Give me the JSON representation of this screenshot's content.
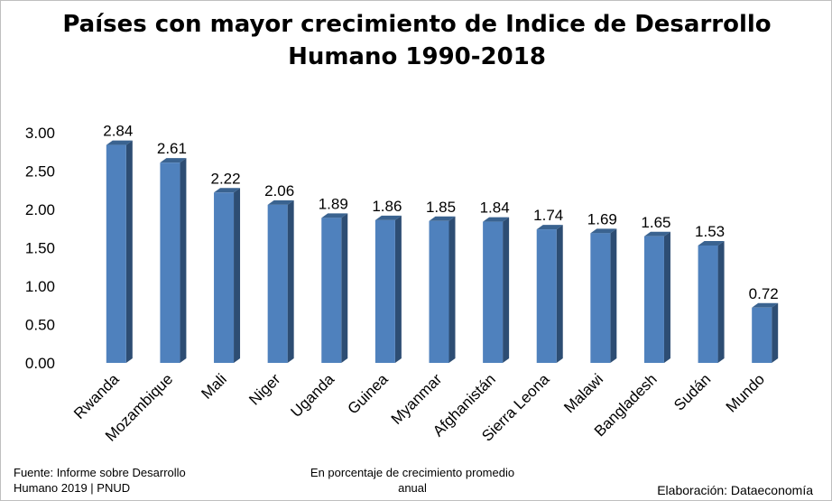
{
  "chart_data": {
    "type": "bar",
    "title": [
      "Países con mayor crecimiento de Indice de Desarrollo",
      "Humano 1990-2018"
    ],
    "categories": [
      "Rwanda",
      "Mozambique",
      "Mali",
      "Niger",
      "Uganda",
      "Guinea",
      "Myanmar",
      "Afghanistán",
      "Sierra Leona",
      "Malawi",
      "Bangladesh",
      "Sudán",
      "Mundo"
    ],
    "values": [
      2.84,
      2.61,
      2.22,
      2.06,
      1.89,
      1.86,
      1.85,
      1.84,
      1.74,
      1.69,
      1.65,
      1.53,
      0.72
    ],
    "value_labels": [
      "2.84",
      "2.61",
      "2.22",
      "2.06",
      "1.89",
      "1.86",
      "1.85",
      "1.84",
      "1.74",
      "1.69",
      "1.65",
      "1.53",
      "0.72"
    ],
    "yticks": [
      "0.00",
      "0.50",
      "1.00",
      "1.50",
      "2.00",
      "2.50",
      "3.00"
    ],
    "ylim": [
      0,
      3.0
    ],
    "grid": false,
    "legend": "none",
    "colors": {
      "front": "#4f81bd",
      "side": "#2d4d73",
      "top": "#3a6390"
    }
  },
  "footer": {
    "source": "Fuente: Informe sobre Desarrollo Humano 2019 | PNUD",
    "subtitle": "En porcentaje de crecimiento promedio anual",
    "credit": "Elaboración: Dataeconomía"
  }
}
